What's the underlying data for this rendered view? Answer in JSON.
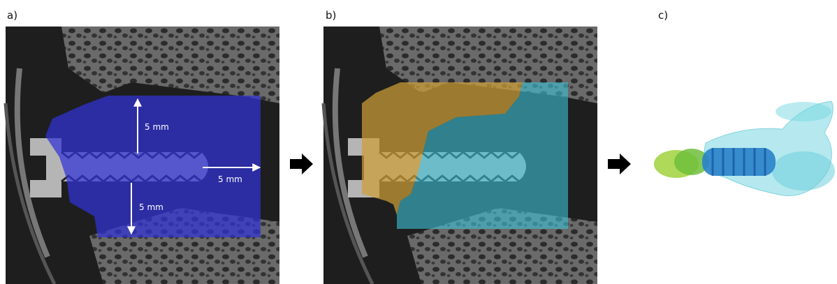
{
  "panels": [
    {
      "label": "a)",
      "annotations": [
        "5 mm",
        "5 mm",
        "5 mm"
      ]
    },
    {
      "label": "b)"
    },
    {
      "label": "c)"
    }
  ]
}
